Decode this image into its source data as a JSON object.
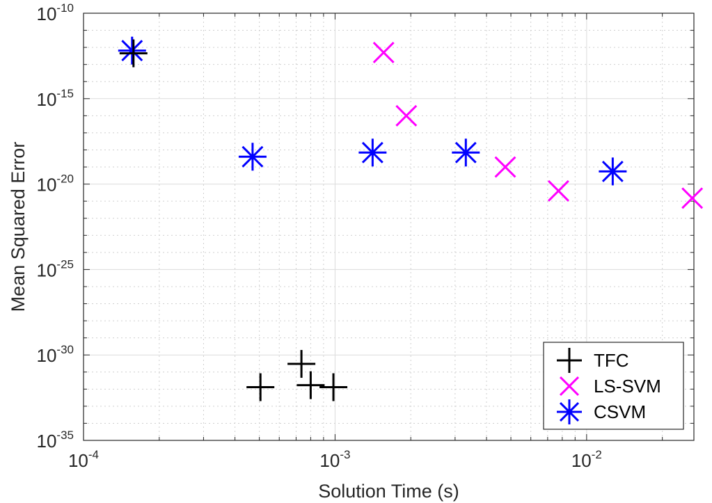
{
  "chart_data": {
    "type": "scatter",
    "title": "",
    "xlabel": "Solution Time (s)",
    "ylabel": "Mean Squared Error",
    "xscale": "log",
    "yscale": "log",
    "xlim": [
      0.0001,
      0.0267
    ],
    "ylim": [
      1e-35,
      1e-10
    ],
    "grid": "major and minor",
    "legend_position": "bottom-right",
    "x_ticks": [
      {
        "base": "10",
        "exp": "-4"
      },
      {
        "base": "10",
        "exp": "-3"
      },
      {
        "base": "10",
        "exp": "-2"
      }
    ],
    "y_ticks": [
      {
        "base": "10",
        "exp": "-10"
      },
      {
        "base": "10",
        "exp": "-15"
      },
      {
        "base": "10",
        "exp": "-20"
      },
      {
        "base": "10",
        "exp": "-25"
      },
      {
        "base": "10",
        "exp": "-30"
      },
      {
        "base": "10",
        "exp": "-35"
      }
    ],
    "series": [
      {
        "name": "TFC",
        "marker": "plus",
        "color": "#000000",
        "points": [
          {
            "x": 0.000158,
            "y": 4.5e-13
          },
          {
            "x": 0.000505,
            "y": 1.3e-32
          },
          {
            "x": 0.000735,
            "y": 3e-31
          },
          {
            "x": 0.0008,
            "y": 1.7e-32
          },
          {
            "x": 0.000985,
            "y": 1.3e-32
          }
        ]
      },
      {
        "name": "LS-SVM",
        "marker": "cross",
        "color": "#ff00ff",
        "points": [
          {
            "x": 0.00156,
            "y": 5e-13
          },
          {
            "x": 0.00192,
            "y": 1e-16
          },
          {
            "x": 0.00475,
            "y": 1e-19
          },
          {
            "x": 0.00773,
            "y": 4e-21
          },
          {
            "x": 0.0263,
            "y": 1.5e-21
          }
        ]
      },
      {
        "name": "CSVM",
        "marker": "asterisk",
        "color": "#0000ff",
        "points": [
          {
            "x": 0.000156,
            "y": 6.5e-13
          },
          {
            "x": 0.00047,
            "y": 4e-19
          },
          {
            "x": 0.00141,
            "y": 7e-19
          },
          {
            "x": 0.00331,
            "y": 7e-19
          },
          {
            "x": 0.0127,
            "y": 5.5e-20
          }
        ]
      }
    ]
  }
}
